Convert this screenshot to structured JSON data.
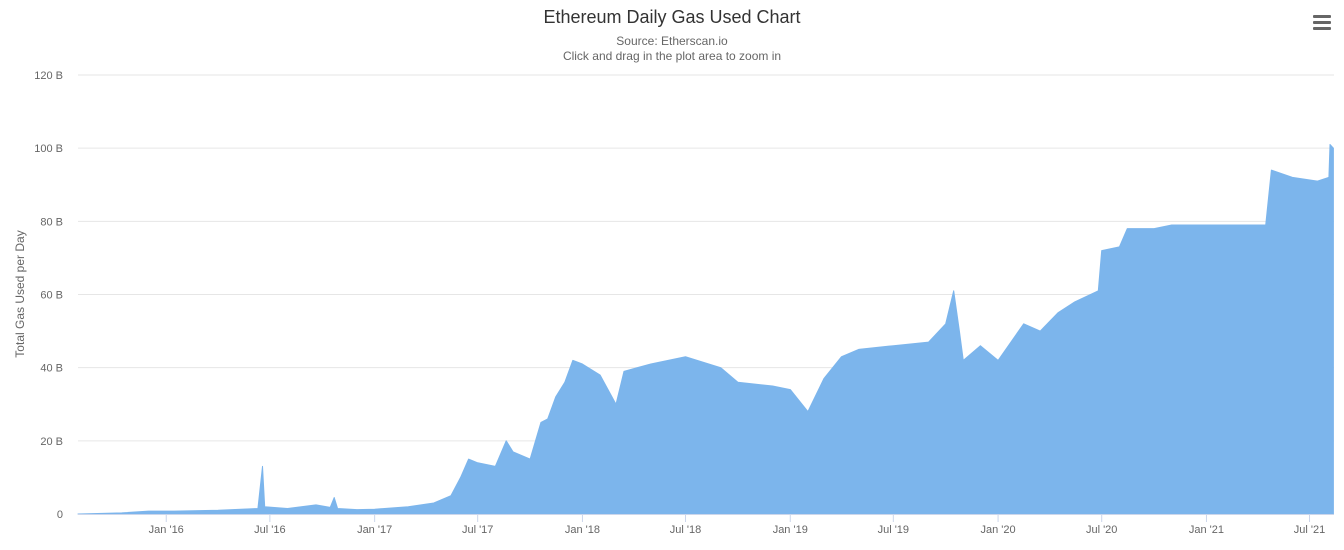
{
  "chart_data": {
    "type": "area",
    "title": "Ethereum Daily Gas Used Chart",
    "subtitle": "Source: Etherscan.io",
    "caption": "Click and drag in the plot area to zoom in",
    "xlabel": "",
    "ylabel": "Total Gas Used per Day",
    "color": "#7cb5ec",
    "grid": true,
    "legend": "none",
    "ylim": [
      0,
      120
    ],
    "xlim": [
      "2015-07-30",
      "2021-08-13"
    ],
    "y_ticks": [
      {
        "value": 0,
        "label": "0"
      },
      {
        "value": 20,
        "label": "20 B"
      },
      {
        "value": 40,
        "label": "40 B"
      },
      {
        "value": 60,
        "label": "60 B"
      },
      {
        "value": 80,
        "label": "80 B"
      },
      {
        "value": 100,
        "label": "100 B"
      },
      {
        "value": 120,
        "label": "120 B"
      }
    ],
    "x_ticks": [
      {
        "date": "2016-01-01",
        "label": "Jan '16"
      },
      {
        "date": "2016-07-01",
        "label": "Jul '16"
      },
      {
        "date": "2017-01-01",
        "label": "Jan '17"
      },
      {
        "date": "2017-07-01",
        "label": "Jul '17"
      },
      {
        "date": "2018-01-01",
        "label": "Jan '18"
      },
      {
        "date": "2018-07-01",
        "label": "Jul '18"
      },
      {
        "date": "2019-01-01",
        "label": "Jan '19"
      },
      {
        "date": "2019-07-01",
        "label": "Jul '19"
      },
      {
        "date": "2020-01-01",
        "label": "Jan '20"
      },
      {
        "date": "2020-07-01",
        "label": "Jul '20"
      },
      {
        "date": "2021-01-01",
        "label": "Jan '21"
      },
      {
        "date": "2021-07-01",
        "label": "Jul '21"
      }
    ],
    "series": [
      {
        "name": "",
        "points": [
          [
            "2015-07-30",
            0.0
          ],
          [
            "2015-10-15",
            0.3
          ],
          [
            "2015-12-01",
            0.8
          ],
          [
            "2016-01-15",
            0.8
          ],
          [
            "2016-04-01",
            1.0
          ],
          [
            "2016-06-10",
            1.5
          ],
          [
            "2016-06-18",
            13.0
          ],
          [
            "2016-06-22",
            2.0
          ],
          [
            "2016-08-01",
            1.5
          ],
          [
            "2016-09-20",
            2.5
          ],
          [
            "2016-10-15",
            1.8
          ],
          [
            "2016-10-22",
            4.5
          ],
          [
            "2016-10-28",
            1.5
          ],
          [
            "2016-12-01",
            1.2
          ],
          [
            "2017-01-01",
            1.3
          ],
          [
            "2017-03-01",
            2.0
          ],
          [
            "2017-04-15",
            3.0
          ],
          [
            "2017-05-15",
            5.0
          ],
          [
            "2017-06-01",
            10.0
          ],
          [
            "2017-06-15",
            15.0
          ],
          [
            "2017-07-01",
            14.0
          ],
          [
            "2017-08-01",
            13.0
          ],
          [
            "2017-08-20",
            20.0
          ],
          [
            "2017-09-01",
            17.0
          ],
          [
            "2017-10-01",
            15.0
          ],
          [
            "2017-10-20",
            25.0
          ],
          [
            "2017-11-01",
            26.0
          ],
          [
            "2017-11-15",
            32.0
          ],
          [
            "2017-12-01",
            36.0
          ],
          [
            "2017-12-15",
            42.0
          ],
          [
            "2018-01-01",
            41.0
          ],
          [
            "2018-02-01",
            38.0
          ],
          [
            "2018-03-01",
            30.0
          ],
          [
            "2018-03-15",
            39.0
          ],
          [
            "2018-05-01",
            41.0
          ],
          [
            "2018-07-01",
            43.0
          ],
          [
            "2018-09-01",
            40.0
          ],
          [
            "2018-10-01",
            36.0
          ],
          [
            "2018-12-01",
            35.0
          ],
          [
            "2019-01-01",
            34.0
          ],
          [
            "2019-02-01",
            28.0
          ],
          [
            "2019-03-01",
            37.0
          ],
          [
            "2019-04-01",
            43.0
          ],
          [
            "2019-05-01",
            45.0
          ],
          [
            "2019-07-01",
            46.0
          ],
          [
            "2019-09-01",
            47.0
          ],
          [
            "2019-10-01",
            52.0
          ],
          [
            "2019-10-15",
            61.0
          ],
          [
            "2019-10-25",
            50.0
          ],
          [
            "2019-11-01",
            42.0
          ],
          [
            "2019-12-01",
            46.0
          ],
          [
            "2020-01-01",
            42.0
          ],
          [
            "2020-02-15",
            52.0
          ],
          [
            "2020-03-15",
            50.0
          ],
          [
            "2020-04-15",
            55.0
          ],
          [
            "2020-05-15",
            58.0
          ],
          [
            "2020-06-25",
            61.0
          ],
          [
            "2020-07-01",
            72.0
          ],
          [
            "2020-08-01",
            73.0
          ],
          [
            "2020-08-15",
            78.0
          ],
          [
            "2020-10-01",
            78.0
          ],
          [
            "2020-11-01",
            79.0
          ],
          [
            "2021-01-01",
            79.0
          ],
          [
            "2021-04-15",
            79.0
          ],
          [
            "2021-04-25",
            94.0
          ],
          [
            "2021-06-01",
            92.0
          ],
          [
            "2021-07-15",
            91.0
          ],
          [
            "2021-08-04",
            92.0
          ],
          [
            "2021-08-06",
            101.0
          ],
          [
            "2021-08-12",
            100.0
          ]
        ]
      }
    ]
  },
  "menu": {
    "label": "Chart context menu"
  }
}
